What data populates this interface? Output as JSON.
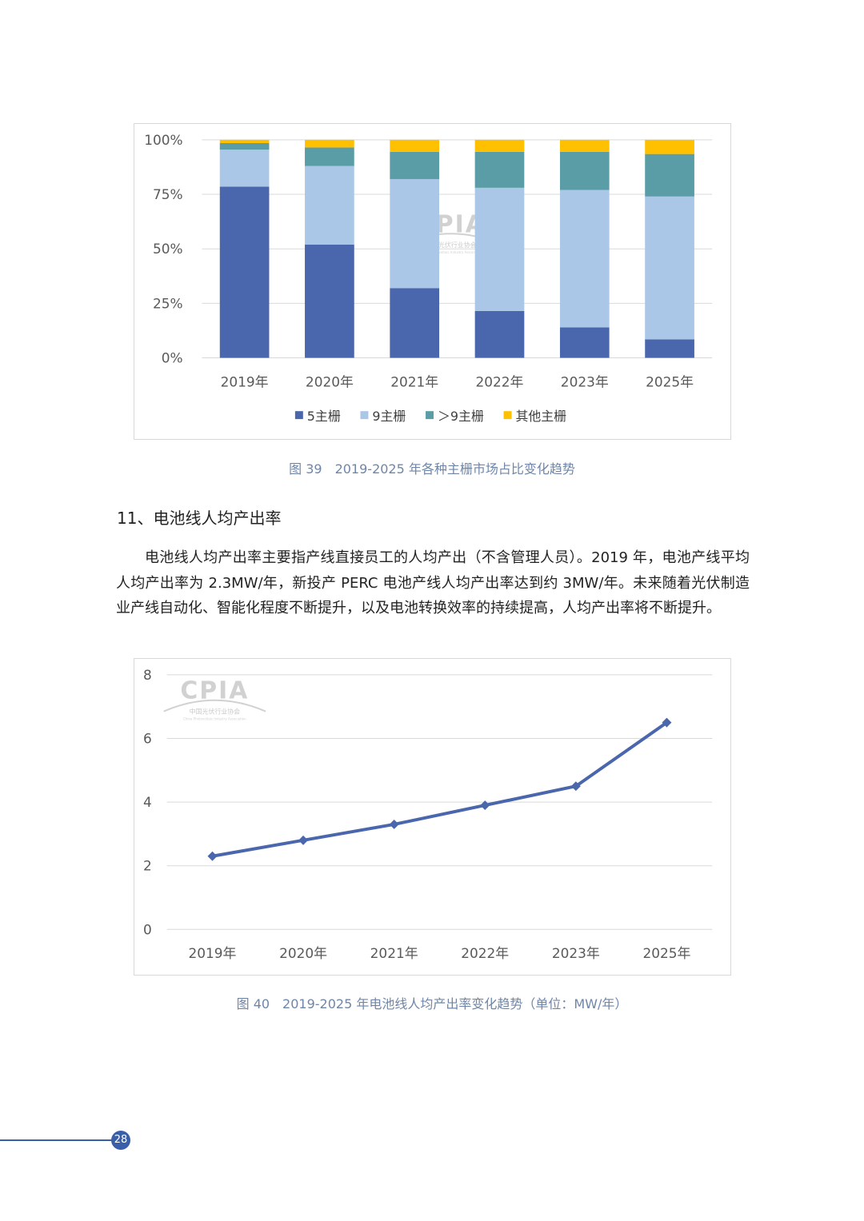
{
  "chart1": {
    "chart_data": {
      "type": "bar",
      "stacked": true,
      "categories": [
        "2019年",
        "2020年",
        "2021年",
        "2022年",
        "2023年",
        "2025年"
      ],
      "series": [
        {
          "name": "5主栅",
          "color": "#4a66ac",
          "values": [
            78.5,
            52,
            32,
            21.5,
            14,
            8.5
          ]
        },
        {
          "name": "9主栅",
          "color": "#abc7e8",
          "values": [
            17,
            36,
            50,
            56.5,
            63,
            65.5
          ]
        },
        {
          "name": "＞9主栅",
          "color": "#5b9da6",
          "values": [
            3,
            8.5,
            12.5,
            16.5,
            17.5,
            19.5
          ]
        },
        {
          "name": "其他主栅",
          "color": "#ffc000",
          "values": [
            1.5,
            3.5,
            5.5,
            5.5,
            5.5,
            6.5
          ]
        }
      ],
      "yticks": [
        "100%",
        "75%",
        "50%",
        "25%",
        "0%"
      ],
      "ylim": [
        0,
        100
      ],
      "legend": "bottom",
      "grid": true
    }
  },
  "caption1": "图 39　2019-2025 年各种主栅市场占比变化趋势",
  "section": {
    "title": "11、电池线人均产出率",
    "paragraph": "电池线人均产出率主要指产线直接员工的人均产出（不含管理人员）。2019 年，电池产线平均人均产出率为 2.3MW/年，新投产 PERC 电池产线人均产出率达到约 3MW/年。未来随着光伏制造业产线自动化、智能化程度不断提升，以及电池转换效率的持续提高，人均产出率将不断提升。"
  },
  "chart2": {
    "chart_data": {
      "type": "line",
      "categories": [
        "2019年",
        "2020年",
        "2021年",
        "2022年",
        "2023年",
        "2025年"
      ],
      "series": [
        {
          "values": [
            2.3,
            2.8,
            3.3,
            3.9,
            4.5,
            6.5
          ],
          "color": "#4a66ac",
          "marker": "diamond"
        }
      ],
      "yticks": [
        "8",
        "6",
        "4",
        "2",
        "0"
      ],
      "ylim": [
        0,
        8
      ],
      "grid": true
    }
  },
  "caption2": "图 40　2019-2025 年电池线人均产出率变化趋势（单位：MW/年）",
  "watermark": {
    "logo": "CPIA",
    "org_cn": "中国光伏行业协会",
    "org_en": "China Photovoltaic Industry Association"
  },
  "footer": {
    "page_number": "28"
  }
}
